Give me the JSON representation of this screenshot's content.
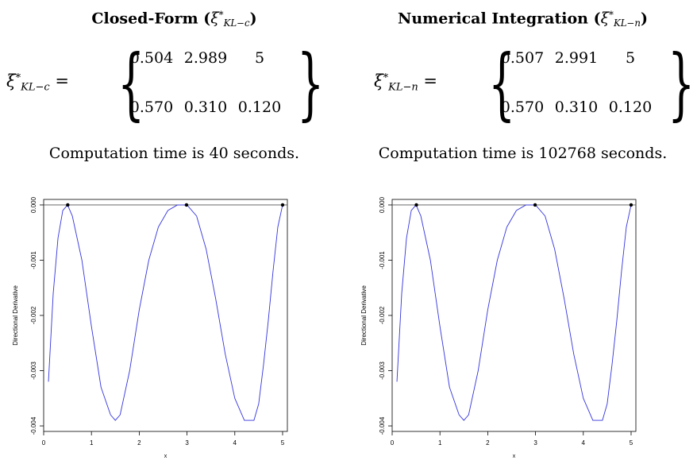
{
  "panels": [
    {
      "title_text": "Closed-Form",
      "xi_base": "ξ",
      "xi_sup": "*",
      "xi_sub": "KL−c",
      "design_rows": [
        [
          "0.504",
          "2.989",
          "5"
        ],
        [
          "0.570",
          "0.310",
          "0.120"
        ]
      ],
      "time_text": "Computation time is 40 seconds."
    },
    {
      "title_text": "Numerical Integration",
      "xi_base": "ξ",
      "xi_sup": "*",
      "xi_sub": "KL−n",
      "design_rows": [
        [
          "0.507",
          "2.991",
          "5"
        ],
        [
          "0.570",
          "0.310",
          "0.120"
        ]
      ],
      "time_text": "Computation time is 102768 seconds."
    }
  ],
  "chart_data": [
    {
      "type": "line",
      "xlabel": "x",
      "ylabel": "Directional Derivative",
      "xlim": [
        0,
        5.1
      ],
      "ylim": [
        -0.0041,
        0.0001
      ],
      "xticks": [
        0,
        1,
        2,
        3,
        4,
        5
      ],
      "yticks": [
        "0.000",
        "-0.001",
        "-0.002",
        "-0.003",
        "-0.004"
      ],
      "ytick_values": [
        0,
        -0.001,
        -0.002,
        -0.003,
        -0.004
      ],
      "reference_line_y": 0,
      "series_color": "#3333dd",
      "x": [
        0.1,
        0.2,
        0.3,
        0.4,
        0.5,
        0.6,
        0.8,
        1.0,
        1.2,
        1.4,
        1.5,
        1.6,
        1.8,
        2.0,
        2.2,
        2.4,
        2.6,
        2.8,
        3.0,
        3.2,
        3.4,
        3.6,
        3.8,
        4.0,
        4.2,
        4.4,
        4.5,
        4.6,
        4.7,
        4.8,
        4.9,
        5.0
      ],
      "y": [
        -0.0032,
        -0.0016,
        -0.0006,
        -0.0001,
        0.0,
        -0.0002,
        -0.001,
        -0.0022,
        -0.0033,
        -0.0038,
        -0.0039,
        -0.0038,
        -0.003,
        -0.0019,
        -0.001,
        -0.0004,
        -0.0001,
        0.0,
        0.0,
        -0.0002,
        -0.0008,
        -0.0017,
        -0.0027,
        -0.0035,
        -0.0039,
        -0.0039,
        -0.0036,
        -0.0029,
        -0.0021,
        -0.0012,
        -0.0004,
        0.0
      ],
      "support_points": [
        {
          "x": 0.504,
          "y": 0
        },
        {
          "x": 2.989,
          "y": 0
        },
        {
          "x": 5,
          "y": 0
        }
      ]
    },
    {
      "type": "line",
      "xlabel": "x",
      "ylabel": "Directional Derivative",
      "xlim": [
        0,
        5.1
      ],
      "ylim": [
        -0.0041,
        0.0001
      ],
      "xticks": [
        0,
        1,
        2,
        3,
        4,
        5
      ],
      "yticks": [
        "0.000",
        "-0.001",
        "-0.002",
        "-0.003",
        "-0.004"
      ],
      "ytick_values": [
        0,
        -0.001,
        -0.002,
        -0.003,
        -0.004
      ],
      "reference_line_y": 0,
      "series_color": "#3333dd",
      "x": [
        0.1,
        0.2,
        0.3,
        0.4,
        0.5,
        0.6,
        0.8,
        1.0,
        1.2,
        1.4,
        1.5,
        1.6,
        1.8,
        2.0,
        2.2,
        2.4,
        2.6,
        2.8,
        3.0,
        3.2,
        3.4,
        3.6,
        3.8,
        4.0,
        4.2,
        4.4,
        4.5,
        4.6,
        4.7,
        4.8,
        4.9,
        5.0
      ],
      "y": [
        -0.0032,
        -0.0016,
        -0.0006,
        -0.0001,
        0.0,
        -0.0002,
        -0.001,
        -0.0022,
        -0.0033,
        -0.0038,
        -0.0039,
        -0.0038,
        -0.003,
        -0.0019,
        -0.001,
        -0.0004,
        -0.0001,
        0.0,
        0.0,
        -0.0002,
        -0.0008,
        -0.0017,
        -0.0027,
        -0.0035,
        -0.0039,
        -0.0039,
        -0.0036,
        -0.0029,
        -0.0021,
        -0.0012,
        -0.0004,
        0.0
      ],
      "support_points": [
        {
          "x": 0.507,
          "y": 0
        },
        {
          "x": 2.991,
          "y": 0
        },
        {
          "x": 5,
          "y": 0
        }
      ]
    }
  ]
}
